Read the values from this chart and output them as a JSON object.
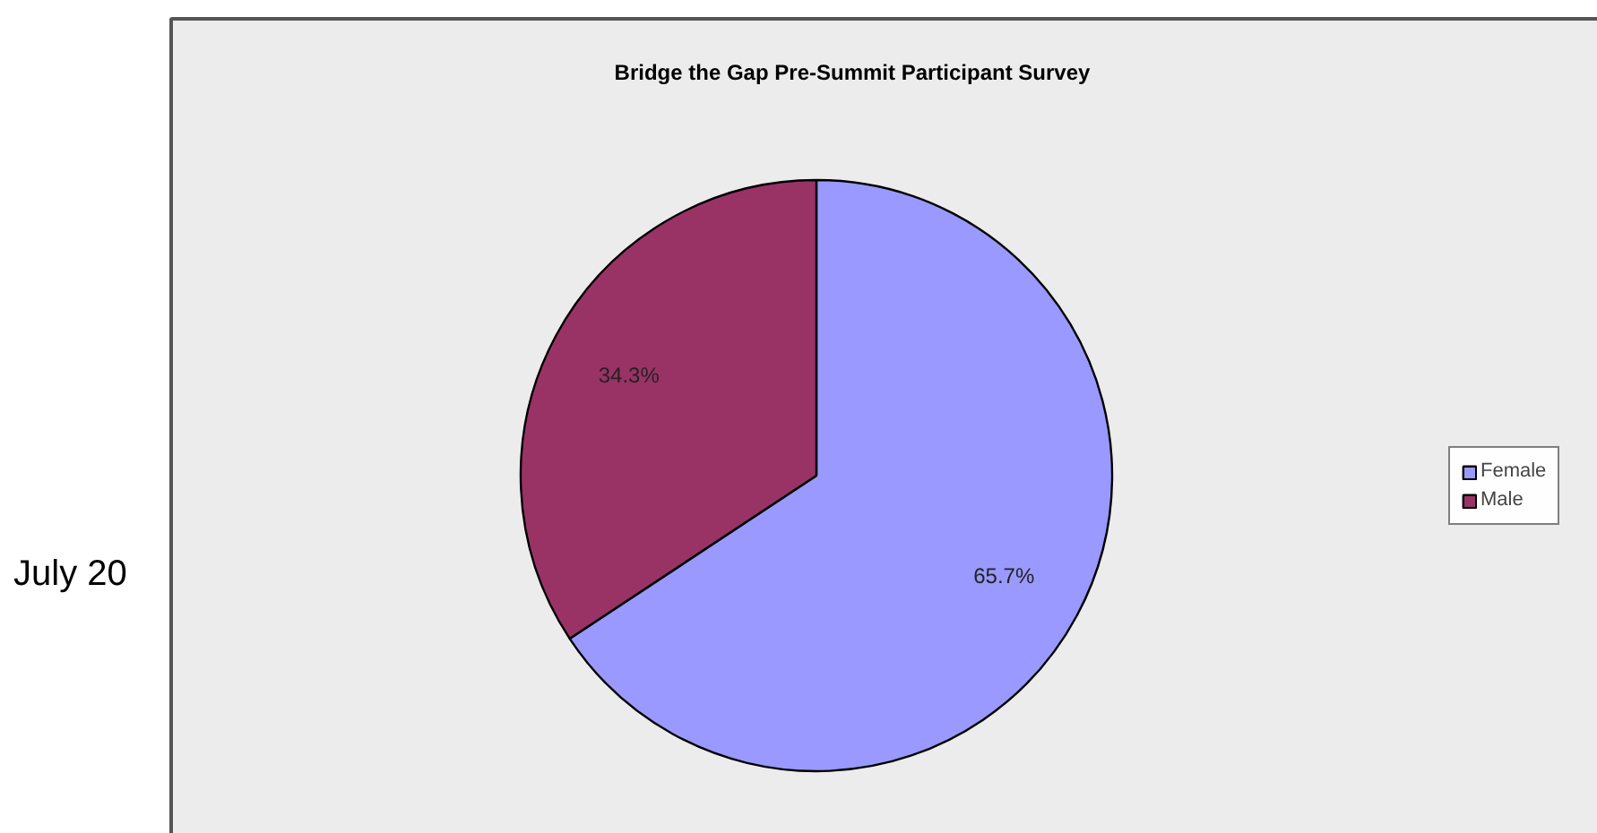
{
  "chart_data": {
    "type": "pie",
    "title": "Bridge the Gap Pre-Summit Participant Survey",
    "categories": [
      "Female",
      "Male"
    ],
    "values": [
      65.7,
      34.3
    ],
    "colors": [
      "#9999ff",
      "#993366"
    ],
    "value_labels": [
      "65.7%",
      "34.3%"
    ],
    "legend": "right",
    "annotations": [
      "July 20"
    ]
  }
}
